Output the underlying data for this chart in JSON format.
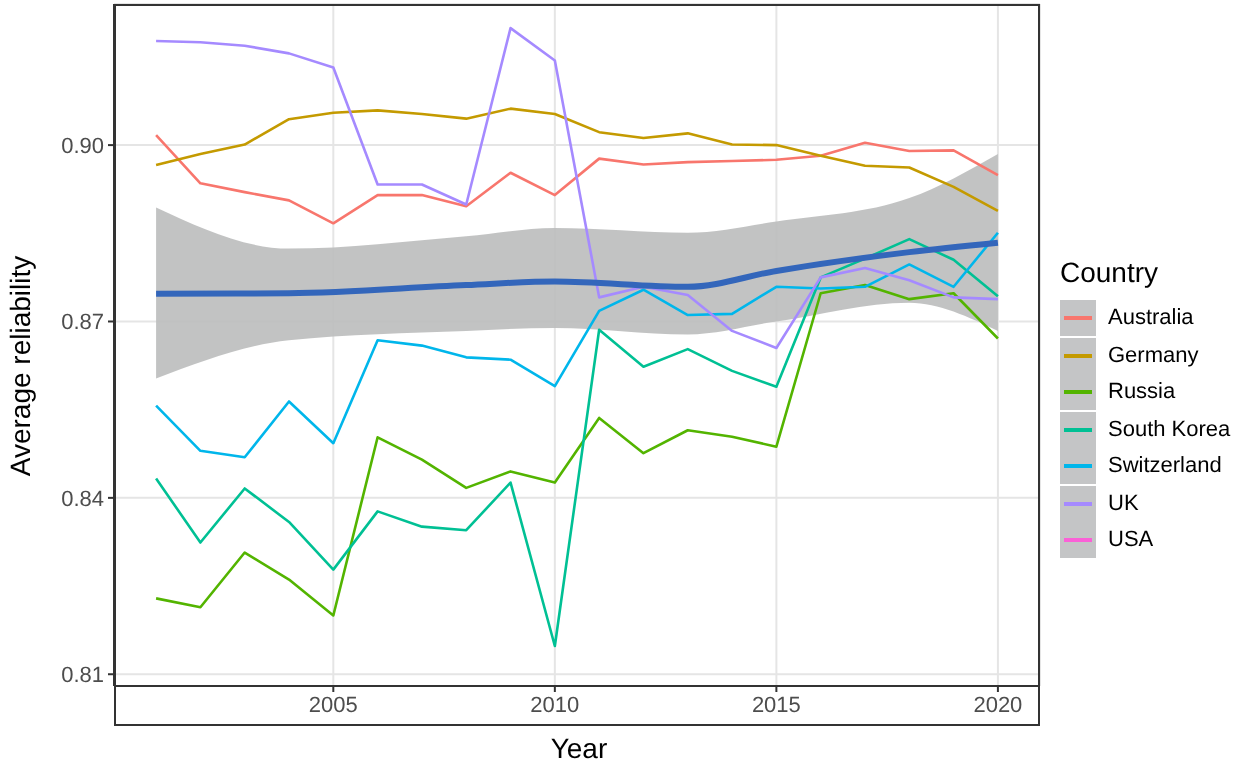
{
  "chart_data": {
    "type": "line",
    "xlabel": "Year",
    "ylabel": "Average reliability",
    "legend_title": "Country",
    "legend": "right",
    "grid": true,
    "marker": "none",
    "line_style": "solid",
    "x": [
      2001,
      2002,
      2003,
      2004,
      2005,
      2006,
      2007,
      2008,
      2009,
      2010,
      2011,
      2012,
      2013,
      2014,
      2015,
      2016,
      2017,
      2018,
      2019,
      2020
    ],
    "xlim": [
      2000.05,
      2020.95
    ],
    "xticks": [
      2005,
      2010,
      2015,
      2020
    ],
    "ylim": [
      0.808,
      0.924
    ],
    "yticks": [
      0.81,
      0.84,
      0.87,
      {
        "value": 0.9,
        "label": "0.90"
      }
    ],
    "series": [
      {
        "name": "Australia",
        "color": "#f8766d",
        "values": [
          0.9017,
          0.8935,
          0.892,
          0.8906,
          0.8867,
          0.8915,
          0.8915,
          0.8896,
          0.8953,
          0.8915,
          0.8977,
          0.8967,
          0.8971,
          0.8973,
          0.8975,
          0.8982,
          0.9004,
          0.899,
          0.8991,
          0.8949
        ]
      },
      {
        "name": "Germany",
        "color": "#c49a00",
        "values": [
          0.8966,
          0.8985,
          0.9001,
          0.9044,
          0.9055,
          0.9059,
          0.9053,
          0.9045,
          0.9062,
          0.9053,
          0.9022,
          0.9012,
          0.902,
          0.9001,
          0.9,
          0.8982,
          0.8965,
          0.8962,
          0.8929,
          0.8888
        ]
      },
      {
        "name": "Russia",
        "color": "#53b400",
        "values": [
          0.8229,
          0.8214,
          0.8307,
          0.8261,
          0.82,
          0.8503,
          0.8465,
          0.8417,
          0.8445,
          0.8426,
          0.8536,
          0.8476,
          0.8515,
          0.8504,
          0.8487,
          0.8748,
          0.8762,
          0.8738,
          0.8748,
          0.8671
        ]
      },
      {
        "name": "South Korea",
        "color": "#00c094",
        "values": [
          0.8433,
          0.8324,
          0.8416,
          0.8359,
          0.8278,
          0.8377,
          0.8351,
          0.8345,
          0.8426,
          0.8148,
          0.8686,
          0.8623,
          0.8653,
          0.8616,
          0.8589,
          0.8775,
          0.8807,
          0.884,
          0.8805,
          0.8743
        ]
      },
      {
        "name": "Switzerland",
        "color": "#00b6eb",
        "values": [
          0.8557,
          0.848,
          0.8469,
          0.8564,
          0.8493,
          0.8668,
          0.8659,
          0.8639,
          0.8635,
          0.859,
          0.8718,
          0.8754,
          0.8711,
          0.8713,
          0.8759,
          0.8756,
          0.8759,
          0.8797,
          0.8759,
          0.8851
        ]
      },
      {
        "name": "UK",
        "color": "#a58aff",
        "values": [
          0.9177,
          0.9175,
          0.9169,
          0.9156,
          0.9132,
          0.8933,
          0.8933,
          0.8899,
          0.9199,
          0.9144,
          0.8741,
          0.8759,
          0.8745,
          0.8684,
          0.8655,
          0.8775,
          0.8791,
          0.877,
          0.8741,
          0.8738
        ]
      },
      {
        "name": "USA",
        "color": "#fb61d7",
        "values": [
          null,
          null,
          null,
          null,
          null,
          null,
          null,
          null,
          null,
          null,
          null,
          null,
          null,
          null,
          null,
          null,
          null,
          null,
          null,
          null
        ]
      },
      {
        "type": "line",
        "color": "#3366bb",
        "x": [
          2001,
          2004,
          2008,
          2010,
          2013,
          2015,
          2018,
          2020
        ],
        "values": [
          0.8747,
          0.8748,
          0.8762,
          0.8768,
          0.8759,
          0.8786,
          0.8818,
          0.8834
        ],
        "lower": [
          0.8603,
          0.8668,
          0.8684,
          0.8689,
          0.8678,
          0.87,
          0.8732,
          0.8684
        ],
        "upper": [
          0.8894,
          0.8824,
          0.8845,
          0.8859,
          0.8851,
          0.887,
          0.891,
          0.8985
        ]
      }
    ]
  }
}
